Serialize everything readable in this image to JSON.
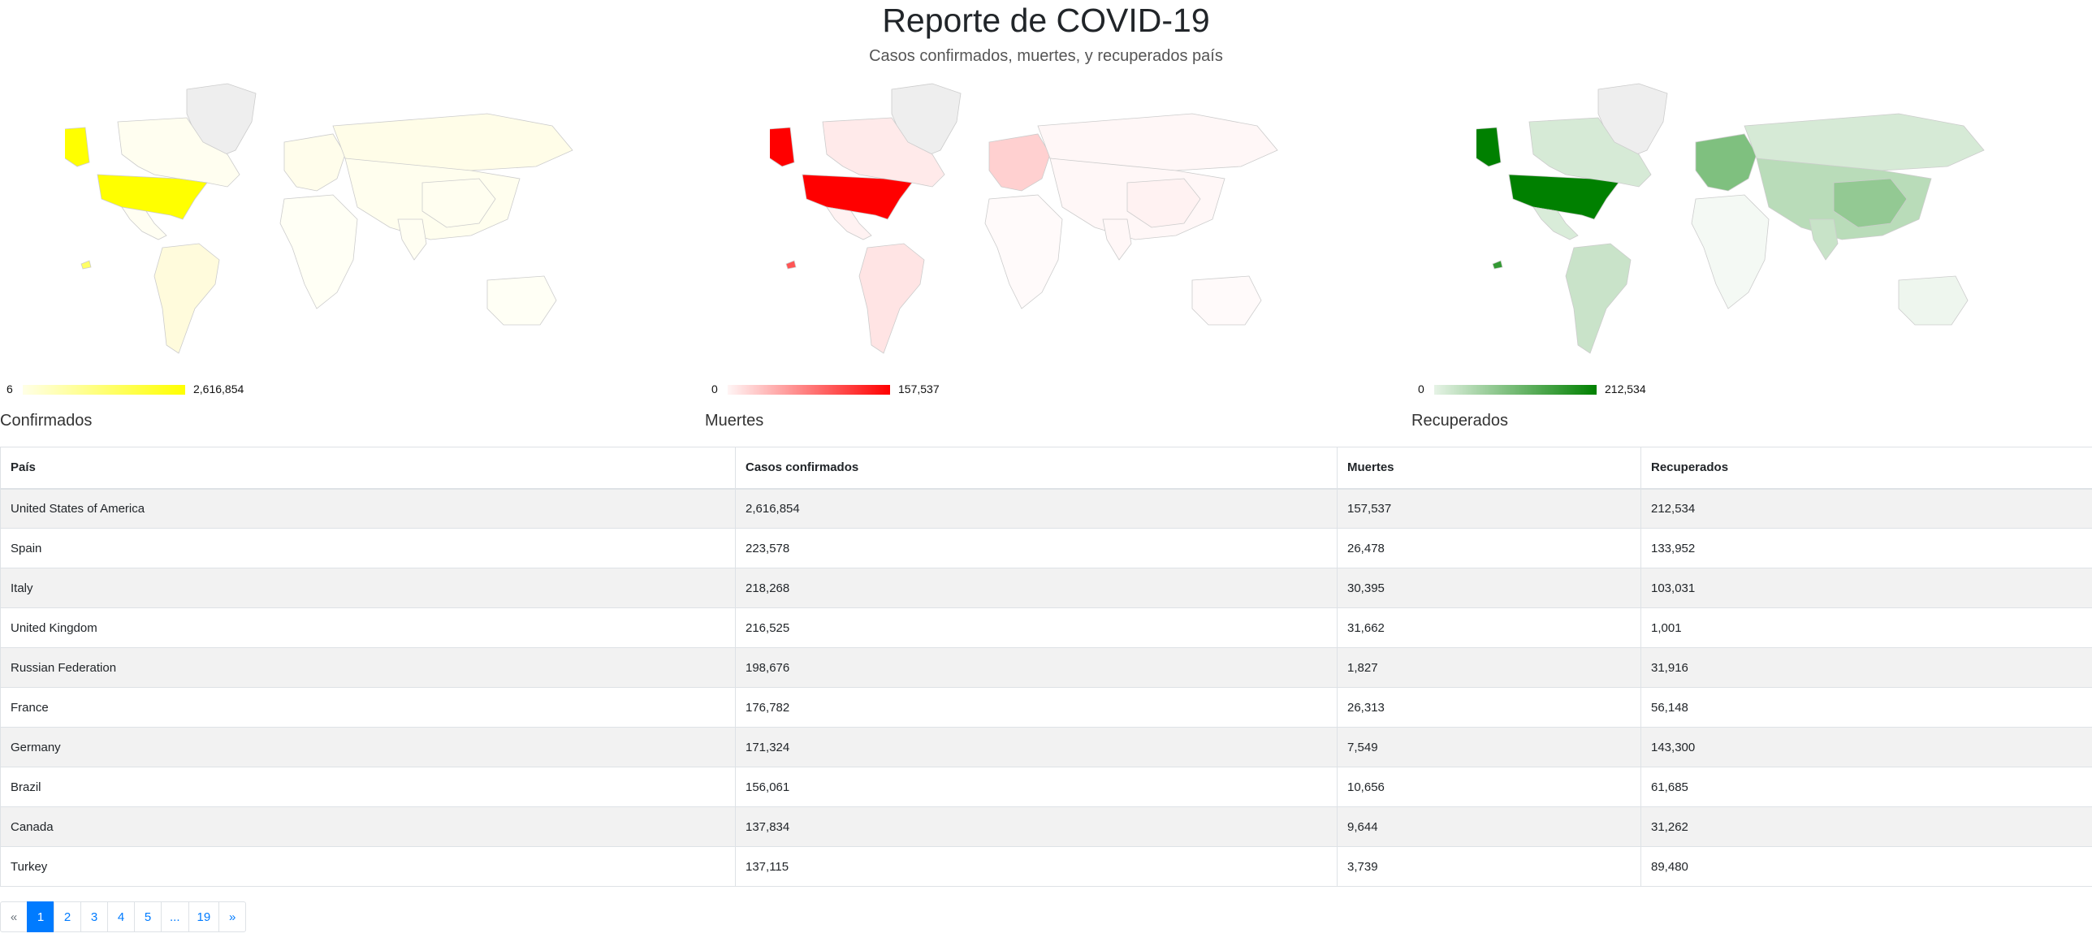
{
  "header": {
    "title": "Reporte de COVID-19",
    "subtitle": "Casos confirmados, muertes, y recuperados país"
  },
  "maps": [
    {
      "label": "Confirmados",
      "legend_min": "6",
      "legend_max": "2,616,854",
      "color_low": "#ffffe6",
      "color_high": "#ffff00"
    },
    {
      "label": "Muertes",
      "legend_min": "0",
      "legend_max": "157,537",
      "color_low": "#fff5f5",
      "color_high": "#ff0000"
    },
    {
      "label": "Recuperados",
      "legend_min": "0",
      "legend_max": "212,534",
      "color_low": "#e6f3e6",
      "color_high": "#008000"
    }
  ],
  "table": {
    "headers": [
      "País",
      "Casos confirmados",
      "Muertes",
      "Recuperados"
    ],
    "rows": [
      [
        "United States of America",
        "2,616,854",
        "157,537",
        "212,534"
      ],
      [
        "Spain",
        "223,578",
        "26,478",
        "133,952"
      ],
      [
        "Italy",
        "218,268",
        "30,395",
        "103,031"
      ],
      [
        "United Kingdom",
        "216,525",
        "31,662",
        "1,001"
      ],
      [
        "Russian Federation",
        "198,676",
        "1,827",
        "31,916"
      ],
      [
        "France",
        "176,782",
        "26,313",
        "56,148"
      ],
      [
        "Germany",
        "171,324",
        "7,549",
        "143,300"
      ],
      [
        "Brazil",
        "156,061",
        "10,656",
        "61,685"
      ],
      [
        "Canada",
        "137,834",
        "9,644",
        "31,262"
      ],
      [
        "Turkey",
        "137,115",
        "3,739",
        "89,480"
      ]
    ]
  },
  "pagination": [
    "«",
    "1",
    "2",
    "3",
    "4",
    "5",
    "...",
    "19",
    "»"
  ],
  "pagination_active": "1"
}
